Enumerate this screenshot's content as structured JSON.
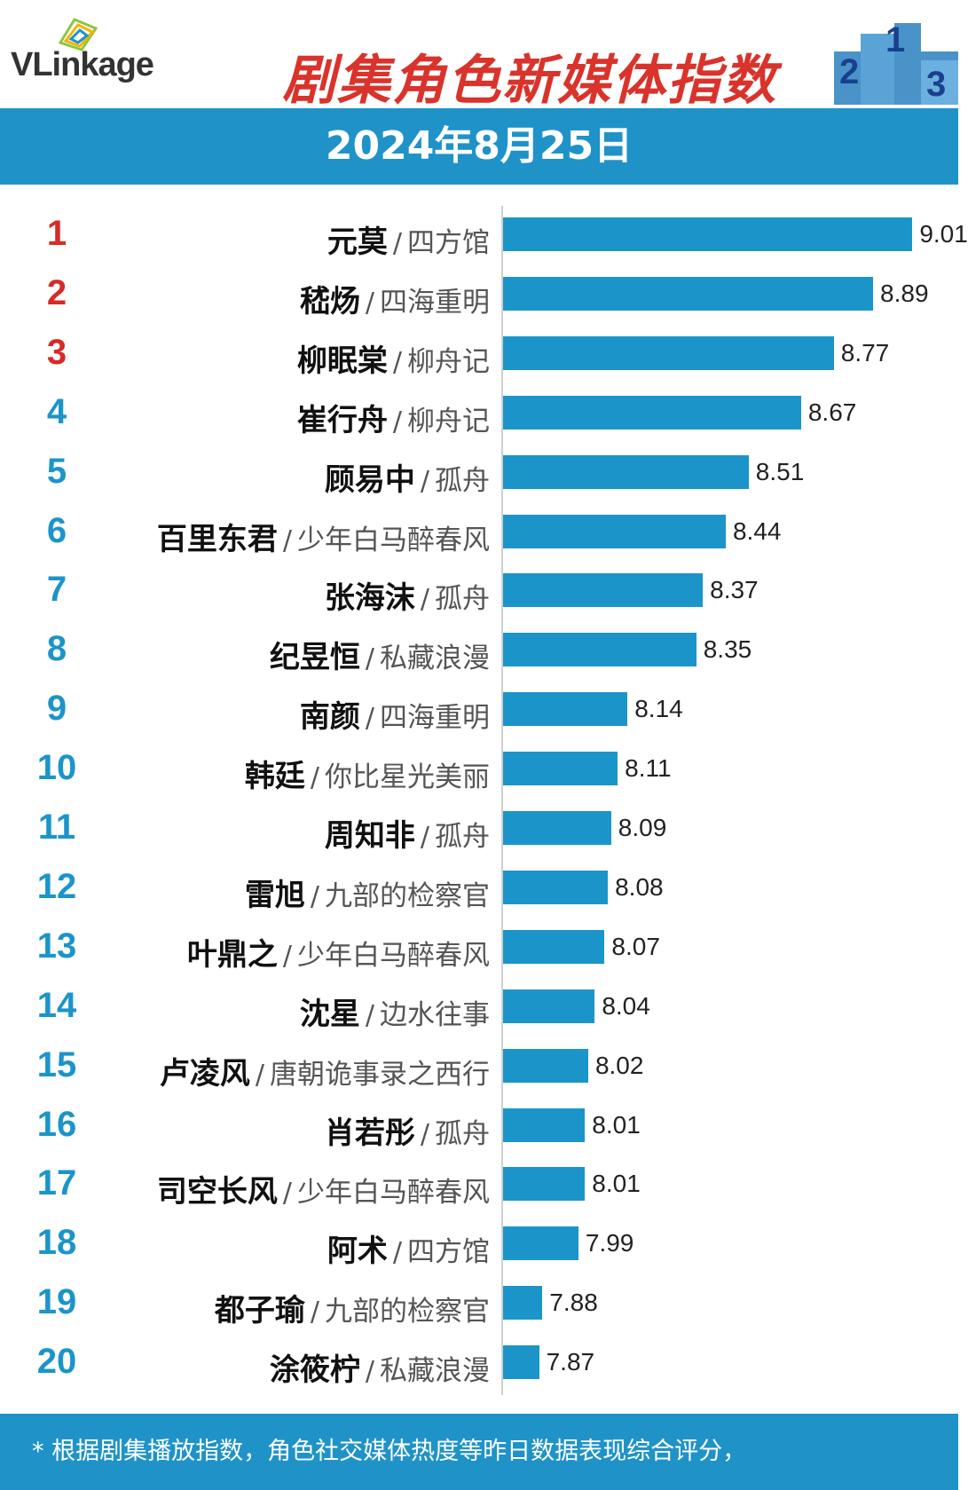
{
  "header": {
    "logo_text": "VLinkage",
    "title": "剧集角色新媒体指数",
    "date": "2024年8月25日"
  },
  "colors": {
    "bar": "#1b95c9",
    "banner": "#1f93c8",
    "title": "#d9332b",
    "top_rank": "#d62b26",
    "rank": "#1b95c9"
  },
  "footer": {
    "note": "* 根据剧集播放指数，角色社交媒体热度等昨日数据表现综合评分，"
  },
  "chart_data": {
    "type": "bar",
    "orientation": "horizontal",
    "title": "剧集角色新媒体指数",
    "xlim": [
      7.76,
      9.15
    ],
    "rows": [
      {
        "rank": "1",
        "name": "元莫",
        "show": "四方馆",
        "value": 9.01
      },
      {
        "rank": "2",
        "name": "嵇炀",
        "show": "四海重明",
        "value": 8.89
      },
      {
        "rank": "3",
        "name": "柳眠棠",
        "show": "柳舟记",
        "value": 8.77
      },
      {
        "rank": "4",
        "name": "崔行舟",
        "show": "柳舟记",
        "value": 8.67
      },
      {
        "rank": "5",
        "name": "顾易中",
        "show": "孤舟",
        "value": 8.51
      },
      {
        "rank": "6",
        "name": "百里东君",
        "show": "少年白马醉春风",
        "value": 8.44
      },
      {
        "rank": "7",
        "name": "张海沫",
        "show": "孤舟",
        "value": 8.37
      },
      {
        "rank": "8",
        "name": "纪昱恒",
        "show": "私藏浪漫",
        "value": 8.35
      },
      {
        "rank": "9",
        "name": "南颜",
        "show": "四海重明",
        "value": 8.14
      },
      {
        "rank": "10",
        "name": "韩廷",
        "show": "你比星光美丽",
        "value": 8.11
      },
      {
        "rank": "11",
        "name": "周知非",
        "show": "孤舟",
        "value": 8.09
      },
      {
        "rank": "12",
        "name": "雷旭",
        "show": "九部的检察官",
        "value": 8.08
      },
      {
        "rank": "13",
        "name": "叶鼎之",
        "show": "少年白马醉春风",
        "value": 8.07
      },
      {
        "rank": "14",
        "name": "沈星",
        "show": "边水往事",
        "value": 8.04
      },
      {
        "rank": "15",
        "name": "卢凌风",
        "show": "唐朝诡事录之西行",
        "value": 8.02
      },
      {
        "rank": "16",
        "name": "肖若彤",
        "show": "孤舟",
        "value": 8.01
      },
      {
        "rank": "17",
        "name": "司空长风",
        "show": "少年白马醉春风",
        "value": 8.01
      },
      {
        "rank": "18",
        "name": "阿术",
        "show": "四方馆",
        "value": 7.99
      },
      {
        "rank": "19",
        "name": "都子瑜",
        "show": "九部的检察官",
        "value": 7.88
      },
      {
        "rank": "20",
        "name": "涂筱柠",
        "show": "私藏浪漫",
        "value": 7.87
      }
    ]
  }
}
